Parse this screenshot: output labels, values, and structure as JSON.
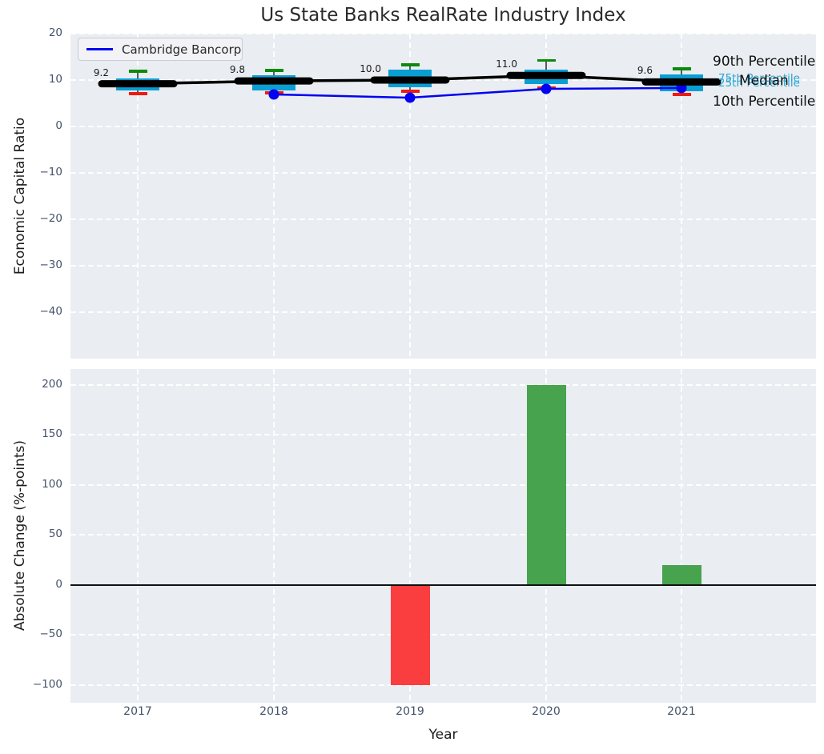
{
  "title": "Us State Banks RealRate Industry Index",
  "legend": {
    "label": "Cambridge Bancorp"
  },
  "annotations": {
    "p90": "90th Percentile",
    "p75": "75th Percentile",
    "p25": "25th Percentile",
    "median": "Median",
    "p10": "10th Percentile"
  },
  "colors": {
    "axes_background": "#eaedf1",
    "grid": "#ffffff",
    "box_fill": "#0a9ed3",
    "cap_90th": "#0a8b0a",
    "cap_10th": "#ee1b10",
    "whisker": "#5a5a5a",
    "median_line": "#000000",
    "company_line": "#0202f0",
    "bar_positive": "#3e9f44",
    "bar_negative": "#fb3434",
    "tick_text": "#44536a",
    "annotation_cyan": "#2aa5d6"
  },
  "chart_data": [
    {
      "type": "line",
      "subtype": "industry-percentile-boxes-with-company-line",
      "title": "Us State Banks RealRate Industry Index",
      "ylabel": "Economic Capital Ratio",
      "categories": [
        "2017",
        "2018",
        "2019",
        "2020",
        "2021"
      ],
      "ylim": [
        -50,
        20
      ],
      "grid": true,
      "legend_position": "upper left",
      "yticks": [
        {
          "v": 20,
          "label": "20"
        },
        {
          "v": 10,
          "label": "10"
        },
        {
          "v": 0,
          "label": "0"
        },
        {
          "v": -10,
          "label": "−10"
        },
        {
          "v": -20,
          "label": "−20"
        },
        {
          "v": -30,
          "label": "−30"
        },
        {
          "v": -40,
          "label": "−40"
        }
      ],
      "industry_median": {
        "name": "Median",
        "values": [
          9.2,
          9.8,
          10.0,
          11.0,
          9.6
        ],
        "labels": [
          "9.2",
          "9.8",
          "10.0",
          "11.0",
          "9.6"
        ]
      },
      "percentiles": [
        {
          "year": "2017",
          "p90": 11.9,
          "p75": 10.4,
          "median": 9.2,
          "p25": 7.7,
          "p10": 7.1
        },
        {
          "year": "2018",
          "p90": 12.1,
          "p75": 11.0,
          "median": 9.8,
          "p25": 7.8,
          "p10": 7.2
        },
        {
          "year": "2019",
          "p90": 13.3,
          "p75": 12.3,
          "median": 10.0,
          "p25": 8.4,
          "p10": 7.6
        },
        {
          "year": "2020",
          "p90": 14.2,
          "p75": 12.3,
          "median": 11.0,
          "p25": 9.2,
          "p10": 8.3
        },
        {
          "year": "2021",
          "p90": 12.4,
          "p75": 11.2,
          "median": 9.6,
          "p25": 7.6,
          "p10": 6.9
        }
      ],
      "company_series": {
        "name": "Cambridge Bancorp",
        "x": [
          "2018",
          "2019",
          "2020",
          "2021"
        ],
        "values": [
          6.9,
          6.2,
          8.1,
          8.3
        ]
      }
    },
    {
      "type": "bar",
      "ylabel": "Absolute Change (%-points)",
      "xlabel": "Year",
      "categories": [
        "2017",
        "2018",
        "2019",
        "2020",
        "2021"
      ],
      "values": [
        0,
        0,
        -100,
        200,
        20
      ],
      "ylim": [
        -118,
        216
      ],
      "grid": true,
      "zero_line": true,
      "yticks": [
        {
          "v": 200,
          "label": "200"
        },
        {
          "v": 150,
          "label": "150"
        },
        {
          "v": 100,
          "label": "100"
        },
        {
          "v": 50,
          "label": "50"
        },
        {
          "v": 0,
          "label": "0"
        },
        {
          "v": -50,
          "label": "−50"
        },
        {
          "v": -100,
          "label": "−100"
        }
      ]
    }
  ]
}
